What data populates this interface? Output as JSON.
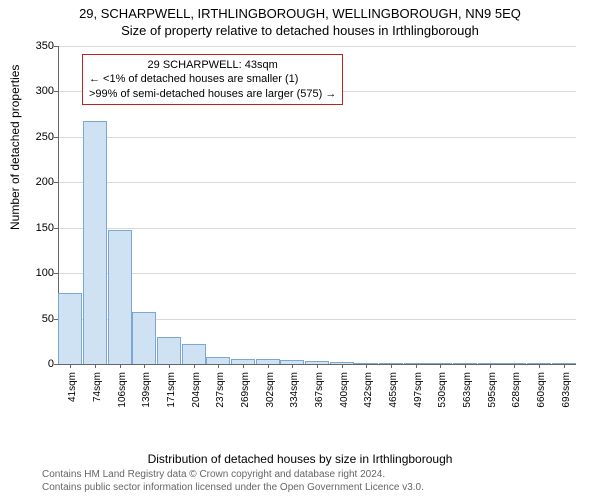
{
  "title": {
    "main": "29, SCHARPWELL, IRTHLINGBOROUGH, WELLINGBOROUGH, NN9 5EQ",
    "sub": "Size of property relative to detached houses in Irthlingborough"
  },
  "chart": {
    "type": "histogram",
    "ylabel": "Number of detached properties",
    "xlabel": "Distribution of detached houses by size in Irthlingborough",
    "ylim": [
      0,
      350
    ],
    "ytick_step": 50,
    "yticks": [
      0,
      50,
      100,
      150,
      200,
      250,
      300,
      350
    ],
    "xticks": [
      "41sqm",
      "74sqm",
      "106sqm",
      "139sqm",
      "171sqm",
      "204sqm",
      "237sqm",
      "269sqm",
      "302sqm",
      "334sqm",
      "367sqm",
      "400sqm",
      "432sqm",
      "465sqm",
      "497sqm",
      "530sqm",
      "563sqm",
      "595sqm",
      "628sqm",
      "660sqm",
      "693sqm"
    ],
    "values": [
      78,
      268,
      148,
      57,
      30,
      22,
      8,
      5,
      5,
      4,
      3,
      2,
      1,
      1,
      1,
      0,
      1,
      0,
      0,
      0,
      1
    ],
    "bar_fill": "#cfe2f3",
    "bar_stroke": "#7ba7d1",
    "grid_color": "#d9d9d9",
    "axis_color": "#666666",
    "background_color": "#ffffff",
    "label_fontsize": 12,
    "tick_fontsize": 11
  },
  "annotation": {
    "line1": "29 SCHARPWELL: 43sqm",
    "line2": "← <1% of detached houses are smaller (1)",
    "line3": ">99% of semi-detached houses are larger (575) →",
    "border_color": "#c02020"
  },
  "footer": {
    "line1": "Contains HM Land Registry data © Crown copyright and database right 2024.",
    "line2": "Contains public sector information licensed under the Open Government Licence v3.0."
  }
}
